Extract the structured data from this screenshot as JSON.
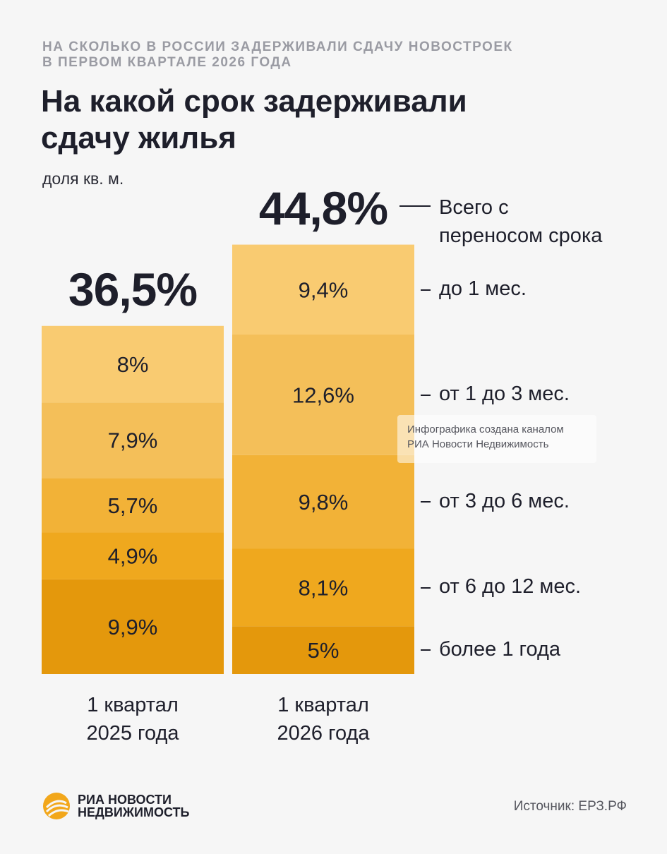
{
  "kicker": {
    "line1": "НА СКОЛЬКО В РОССИИ ЗАДЕРЖИВАЛИ СДАЧУ НОВОСТРОЕК",
    "line2": "В ПЕРВОМ КВАРТАЛЕ 2026 ГОДА"
  },
  "title": {
    "line1": "На какой срок задерживали",
    "line2": "сдачу жилья"
  },
  "unit": "доля кв. м.",
  "total_note": {
    "line1": "Всего с",
    "line2": "переносом срока"
  },
  "watermark": {
    "line1": "Инфографика создана каналом",
    "line2": "РИА Новости Недвижимость"
  },
  "logo": {
    "line1": "РИА НОВОСТИ",
    "line2": "НЕДВИЖИМОСТЬ"
  },
  "source": "Источник: ЕРЗ.РФ",
  "chart_data": {
    "type": "bar",
    "stacked": true,
    "categories": [
      {
        "line1": "1 квартал",
        "line2": "2025 года",
        "total": "36,5%",
        "total_value": 36.5
      },
      {
        "line1": "1 квартал",
        "line2": "2026 года",
        "total": "44,8%",
        "total_value": 44.8
      }
    ],
    "series": [
      {
        "name": "более 1 года",
        "color": "#e4980c",
        "values": [
          9.9,
          5
        ],
        "labels": [
          "9,9%",
          "5%"
        ]
      },
      {
        "name": "от 6 до 12 мес.",
        "color": "#efa81e",
        "values": [
          4.9,
          8.1
        ],
        "labels": [
          "4,9%",
          "8,1%"
        ]
      },
      {
        "name": "от 3 до 6 мес.",
        "color": "#f2b237",
        "values": [
          5.7,
          9.8
        ],
        "labels": [
          "5,7%",
          "9,8%"
        ]
      },
      {
        "name": "от 1 до 3 мес.",
        "color": "#f4bf59",
        "values": [
          7.9,
          12.6
        ],
        "labels": [
          "7,9%",
          "12,6%"
        ]
      },
      {
        "name": "до 1 мес.",
        "color": "#f9cb71",
        "values": [
          8,
          9.4
        ],
        "labels": [
          "8%",
          "9,4%"
        ]
      }
    ]
  }
}
